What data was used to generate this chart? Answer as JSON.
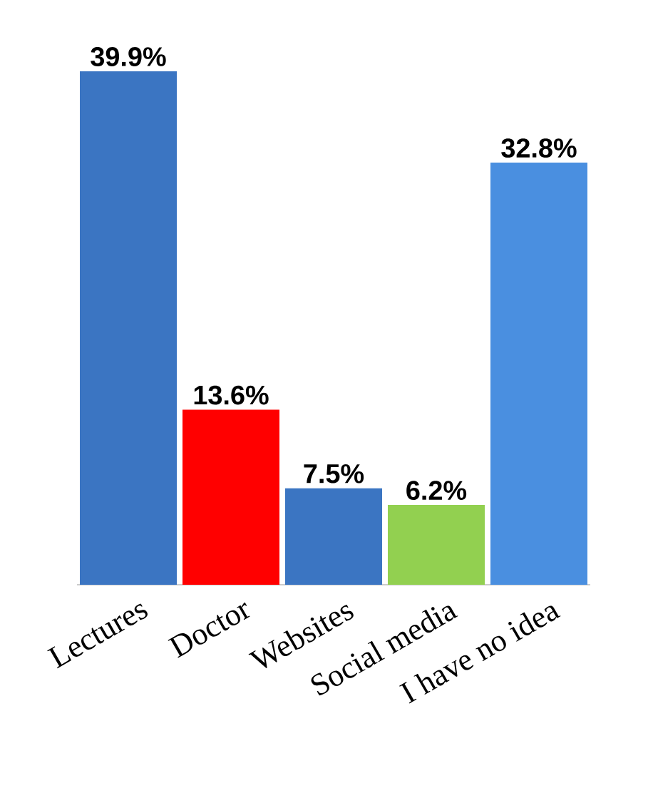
{
  "chart_data": {
    "type": "bar",
    "categories": [
      "Lectures",
      "Doctor",
      "Websites",
      "Social media",
      "I have no idea"
    ],
    "values": [
      39.9,
      13.6,
      7.5,
      6.2,
      32.8
    ],
    "colors": [
      "#3b75c2",
      "#ff0000",
      "#3b75c2",
      "#92d050",
      "#4a8fe0"
    ],
    "value_labels": [
      "39.9%",
      "13.6%",
      "7.5%",
      "6.2%",
      "32.8%"
    ]
  }
}
